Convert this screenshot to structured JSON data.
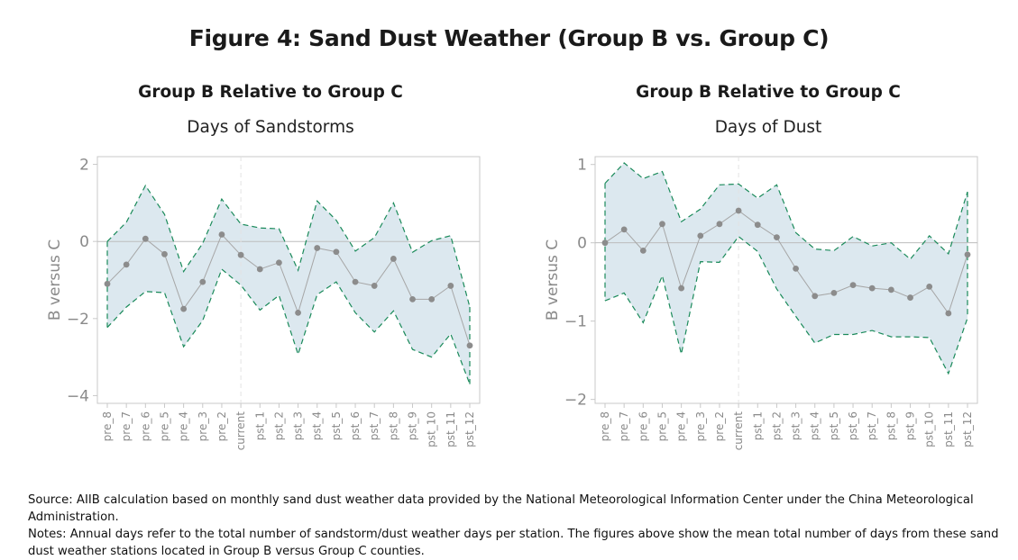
{
  "figure": {
    "title": "Figure 4: Sand Dust Weather (Group B vs. Group C)"
  },
  "notes": {
    "source": "Source: AIIB calculation based on monthly sand dust weather data provided by the National Meteorological Information Center under the China Meteorological Administration.",
    "notes": "Notes: Annual days refer to the total number of sandstorm/dust weather days per station. The figures above show the mean total number of days from these sand dust weather stations located in Group B versus Group C counties."
  },
  "colors": {
    "band_fill": "#dce8ef",
    "band_edge": "#1a8a5a",
    "point": "#8c8c8c",
    "line": "#a6a6a6",
    "zero_line": "#bdbdbd",
    "event_line": "#e3e3e3",
    "frame": "#c8c8c8",
    "tick_text": "#8a8a8a"
  },
  "chart_data": [
    {
      "type": "line",
      "title": "Group B Relative to Group C",
      "subtitle": "Days of Sandstorms",
      "xlabel": "",
      "ylabel": "B versus C",
      "categories": [
        "pre_8",
        "pre_7",
        "pre_6",
        "pre_5",
        "pre_4",
        "pre_3",
        "pre_2",
        "current",
        "pst_1",
        "pst_2",
        "pst_3",
        "pst_4",
        "pst_5",
        "pst_6",
        "pst_7",
        "pst_8",
        "pst_9",
        "pst_10",
        "pst_11",
        "pst_12"
      ],
      "yticks": [
        2,
        0,
        -2,
        -4
      ],
      "ytick_labels": [
        "2",
        "0",
        "−2",
        "−4"
      ],
      "ylim": [
        -4.2,
        2.2
      ],
      "estimate": [
        -1.1,
        -0.6,
        0.07,
        -0.33,
        -1.75,
        -1.05,
        0.18,
        -0.35,
        -0.72,
        -0.55,
        -1.85,
        -0.17,
        -0.27,
        -1.05,
        -1.15,
        -0.45,
        -1.5,
        -1.5,
        -1.15,
        -2.7
      ],
      "ci_upper": [
        0.0,
        0.5,
        1.45,
        0.7,
        -0.78,
        -0.05,
        1.1,
        0.45,
        0.35,
        0.33,
        -0.75,
        1.05,
        0.55,
        -0.25,
        0.1,
        1.0,
        -0.28,
        0.02,
        0.15,
        -1.7
      ],
      "ci_lower": [
        -2.23,
        -1.7,
        -1.3,
        -1.33,
        -2.73,
        -2.05,
        -0.72,
        -1.13,
        -1.78,
        -1.4,
        -2.93,
        -1.38,
        -1.05,
        -1.85,
        -2.35,
        -1.8,
        -2.8,
        -3.0,
        -2.4,
        -3.7
      ],
      "event_category": "current",
      "legend": "none",
      "grid": false
    },
    {
      "type": "line",
      "title": "Group B Relative to Group C",
      "subtitle": "Days of Dust",
      "xlabel": "",
      "ylabel": "B versus C",
      "categories": [
        "pre_8",
        "pre_7",
        "pre_6",
        "pre_5",
        "pre_4",
        "pre_3",
        "pre_2",
        "current",
        "pst_1",
        "pst_2",
        "pst_3",
        "pst_4",
        "pst_5",
        "pst_6",
        "pst_7",
        "pst_8",
        "pst_9",
        "pst_10",
        "pst_11",
        "pst_12"
      ],
      "yticks": [
        1,
        0,
        -1,
        -2
      ],
      "ytick_labels": [
        "1",
        "0",
        "−1",
        "−2"
      ],
      "ylim": [
        -2.05,
        1.1
      ],
      "estimate": [
        0.0,
        0.17,
        -0.1,
        0.24,
        -0.58,
        0.09,
        0.24,
        0.41,
        0.23,
        0.07,
        -0.33,
        -0.68,
        -0.64,
        -0.54,
        -0.58,
        -0.6,
        -0.7,
        -0.56,
        -0.9,
        -0.15
      ],
      "ci_upper": [
        0.76,
        1.02,
        0.82,
        0.91,
        0.27,
        0.43,
        0.74,
        0.75,
        0.57,
        0.74,
        0.13,
        -0.08,
        -0.1,
        0.08,
        -0.04,
        0.0,
        -0.21,
        0.09,
        -0.14,
        0.65
      ],
      "ci_lower": [
        -0.74,
        -0.64,
        -1.02,
        -0.42,
        -1.42,
        -0.24,
        -0.25,
        0.08,
        -0.11,
        -0.59,
        -0.94,
        -1.28,
        -1.17,
        -1.17,
        -1.12,
        -1.2,
        -1.2,
        -1.21,
        -1.67,
        -0.96
      ],
      "event_category": "current",
      "legend": "none",
      "grid": false
    }
  ]
}
